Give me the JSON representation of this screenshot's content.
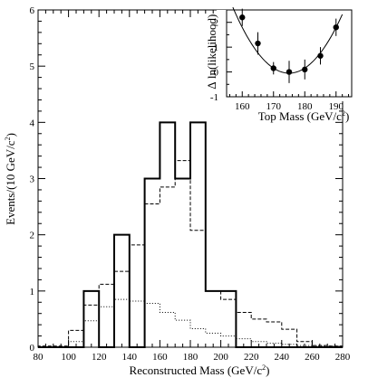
{
  "chart_data": [
    {
      "type": "histogram",
      "xlabel": "Reconstructed Mass (GeV/c",
      "xlabel_sup": "2",
      "xlabel_end": ")",
      "ylabel": "Events/(10 GeV/c",
      "ylabel_sup": "2",
      "ylabel_end": ")",
      "xlim": [
        80,
        280
      ],
      "ylim": [
        0,
        6
      ],
      "x_ticks": [
        "80",
        "100",
        "120",
        "140",
        "160",
        "180",
        "200",
        "220",
        "240",
        "260",
        "280"
      ],
      "x_tick_values": [
        80,
        100,
        120,
        140,
        160,
        180,
        200,
        220,
        240,
        260,
        280
      ],
      "y_ticks": [
        "0",
        "1",
        "2",
        "3",
        "4",
        "5",
        "6"
      ],
      "y_tick_values": [
        0,
        1,
        2,
        3,
        4,
        5,
        6
      ],
      "bin_edges": [
        80,
        90,
        100,
        110,
        120,
        130,
        140,
        150,
        160,
        170,
        180,
        190,
        200,
        210,
        220,
        230,
        240,
        250,
        260,
        270,
        280
      ],
      "series": [
        {
          "style": "solid",
          "values": [
            0,
            0,
            0,
            1,
            0,
            2,
            0,
            3,
            4,
            3,
            4,
            1,
            1,
            0,
            0,
            0,
            0,
            0,
            0,
            0
          ]
        },
        {
          "style": "dashed",
          "values": [
            0.02,
            0.02,
            0.3,
            0.75,
            1.12,
            1.35,
            1.82,
            2.55,
            2.85,
            3.32,
            2.08,
            1.0,
            0.85,
            0.62,
            0.5,
            0.45,
            0.32,
            0.1,
            0.03,
            0.02
          ]
        },
        {
          "style": "dotted",
          "values": [
            0.0,
            0.0,
            0.1,
            0.47,
            0.72,
            0.85,
            0.82,
            0.78,
            0.62,
            0.48,
            0.33,
            0.25,
            0.2,
            0.15,
            0.1,
            0.07,
            0.05,
            0.03,
            0.02,
            0.02
          ]
        }
      ]
    },
    {
      "type": "scatter",
      "xlabel": "Top Mass (GeV/c",
      "xlabel_sup": "2",
      "xlabel_end": ")",
      "ylabel": "∆ ln(likelihood)",
      "xlim": [
        155,
        195
      ],
      "ylim": [
        -1,
        2.5
      ],
      "x_ticks": [
        "160",
        "170",
        "180",
        "190"
      ],
      "x_tick_values": [
        160,
        170,
        180,
        190
      ],
      "y_ticks": [
        "-1",
        "0",
        "1",
        "2"
      ],
      "y_tick_values": [
        -1,
        0,
        1,
        2
      ],
      "points": [
        {
          "x": 160,
          "y": 2.2,
          "err": 0.35
        },
        {
          "x": 165,
          "y": 1.15,
          "err": 0.45
        },
        {
          "x": 170,
          "y": 0.15,
          "err": 0.25
        },
        {
          "x": 175,
          "y": 0.0,
          "err": 0.45
        },
        {
          "x": 180,
          "y": 0.1,
          "err": 0.4
        },
        {
          "x": 185,
          "y": 0.65,
          "err": 0.35
        },
        {
          "x": 190,
          "y": 1.8,
          "err": 0.35
        }
      ],
      "fit_curve": {
        "type": "parabola",
        "min_x": 175,
        "min_y": -0.05,
        "coef": 0.0082
      }
    }
  ]
}
